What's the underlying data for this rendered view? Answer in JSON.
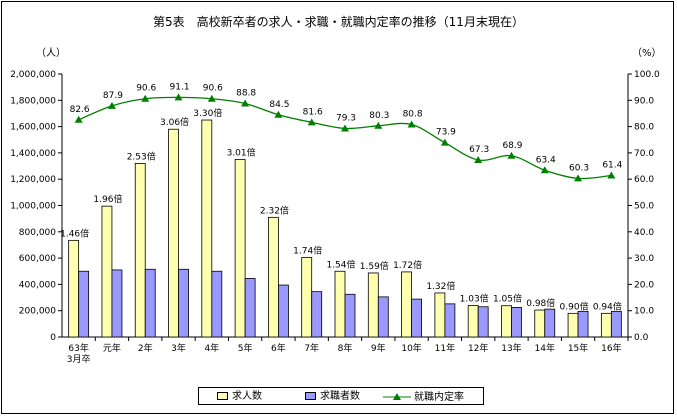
{
  "chart_data": {
    "type": "bar+line",
    "title": "第5表　高校新卒者の求人・求職・就職内定率の推移（11月末現在）",
    "left_unit": "（人）",
    "right_unit": "（%）",
    "categories": [
      "63年\n3月卒",
      "元年",
      "2年",
      "3年",
      "4年",
      "5年",
      "6年",
      "7年",
      "8年",
      "9年",
      "10年",
      "11年",
      "12年",
      "13年",
      "14年",
      "15年",
      "16年"
    ],
    "left_axis": {
      "min": 0,
      "max": 2000000,
      "step": 200000,
      "ticks": [
        "0",
        "200,000",
        "400,000",
        "600,000",
        "800,000",
        "1,000,000",
        "1,200,000",
        "1,400,000",
        "1,600,000",
        "1,800,000",
        "2,000,000"
      ]
    },
    "right_axis": {
      "min": 0,
      "max": 100,
      "step": 10,
      "ticks": [
        "0.0",
        "10.0",
        "20.0",
        "30.0",
        "40.0",
        "50.0",
        "60.0",
        "70.0",
        "80.0",
        "90.0",
        "100.0"
      ]
    },
    "series": [
      {
        "name": "求人数",
        "type": "bar",
        "color": "#ffffb0",
        "values": [
          735000,
          995000,
          1320000,
          1580000,
          1650000,
          1350000,
          910000,
          605000,
          500000,
          487000,
          495000,
          335000,
          240000,
          238000,
          205000,
          180000,
          180000
        ]
      },
      {
        "name": "求職者数",
        "type": "bar",
        "color": "#9999ff",
        "values": [
          500000,
          510000,
          515000,
          515000,
          500000,
          445000,
          395000,
          345000,
          325000,
          305000,
          288000,
          252000,
          230000,
          225000,
          212000,
          195000,
          195000
        ]
      },
      {
        "name": "就職内定率",
        "type": "line",
        "axis": "right",
        "color": "#008000",
        "values": [
          82.6,
          87.9,
          90.6,
          91.1,
          90.6,
          88.8,
          84.5,
          81.6,
          79.3,
          80.3,
          80.8,
          73.9,
          67.3,
          68.9,
          63.4,
          60.3,
          61.4
        ]
      }
    ],
    "ratio_labels": [
      "1.46倍",
      "1.96倍",
      "2.53倍",
      "3.06倍",
      "3.30倍",
      "3.01倍",
      "2.32倍",
      "1.74倍",
      "1.54倍",
      "1.59倍",
      "1.72倍",
      "1.32倍",
      "1.03倍",
      "1.05倍",
      "0.98倍",
      "0.90倍",
      "0.94倍"
    ],
    "rate_labels": [
      "82.6",
      "87.9",
      "90.6",
      "91.1",
      "90.6",
      "88.8",
      "84.5",
      "81.6",
      "79.3",
      "80.3",
      "80.8",
      "73.9",
      "67.3",
      "68.9",
      "63.4",
      "60.3",
      "61.4"
    ],
    "legend": [
      "求人数",
      "求職者数",
      "就職内定率"
    ],
    "legend_position": "bottom-center",
    "grid": false
  }
}
